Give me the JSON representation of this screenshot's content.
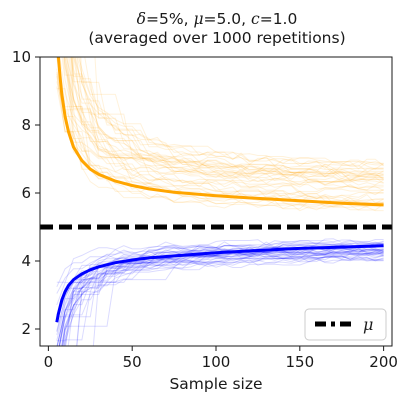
{
  "chart_data": {
    "type": "line",
    "title": {
      "line1_delta_symbol": "δ",
      "line1_delta_value": "=5%, ",
      "line1_mu_symbol": "μ",
      "line1_mu_value": "=5.0, ",
      "line1_c_symbol": "c",
      "line1_c_value": "=1.0",
      "line2": "(averaged over 1000 repetitions)"
    },
    "xlabel": "Sample size",
    "ylabel": "",
    "xlim": [
      -5,
      205
    ],
    "ylim": [
      1.5,
      10
    ],
    "x_ticks": [
      0,
      50,
      100,
      150,
      200
    ],
    "x_tick_labels": [
      "0",
      "50",
      "100",
      "150",
      "200"
    ],
    "y_ticks": [
      2,
      4,
      6,
      8,
      10
    ],
    "y_tick_labels": [
      "2",
      "4",
      "6",
      "8",
      "10"
    ],
    "grid": false,
    "legend": {
      "placement": "lower right",
      "entries": [
        {
          "label": "μ",
          "style": "dash-dot black"
        }
      ]
    },
    "mu_line": {
      "y": 5.0,
      "color": "#000000",
      "style": "dashed"
    },
    "series": [
      {
        "role": "upper_mean",
        "color": "#FFA500",
        "x": [
          5,
          6,
          7,
          8,
          10,
          12,
          15,
          20,
          25,
          30,
          40,
          50,
          60,
          75,
          100,
          125,
          150,
          175,
          200
        ],
        "values": [
          10.6,
          10.0,
          9.4,
          8.9,
          8.25,
          7.8,
          7.35,
          6.95,
          6.7,
          6.55,
          6.35,
          6.22,
          6.12,
          6.02,
          5.92,
          5.84,
          5.77,
          5.7,
          5.65
        ]
      },
      {
        "role": "lower_mean",
        "color": "#0000FF",
        "x": [
          5,
          6,
          7,
          8,
          10,
          12,
          15,
          20,
          25,
          30,
          40,
          50,
          60,
          75,
          100,
          125,
          150,
          175,
          200
        ],
        "values": [
          2.2,
          2.45,
          2.65,
          2.85,
          3.1,
          3.28,
          3.45,
          3.62,
          3.74,
          3.83,
          3.95,
          4.03,
          4.09,
          4.15,
          4.24,
          4.31,
          4.37,
          4.41,
          4.45
        ]
      }
    ],
    "trajectories": {
      "count_each": 40,
      "upper_color": "#FFA500",
      "lower_color": "#0000FF",
      "opacity": 0.14,
      "upper_range_at_200": [
        5.3,
        6.6
      ],
      "lower_range_at_200": [
        4.1,
        4.75
      ]
    }
  }
}
